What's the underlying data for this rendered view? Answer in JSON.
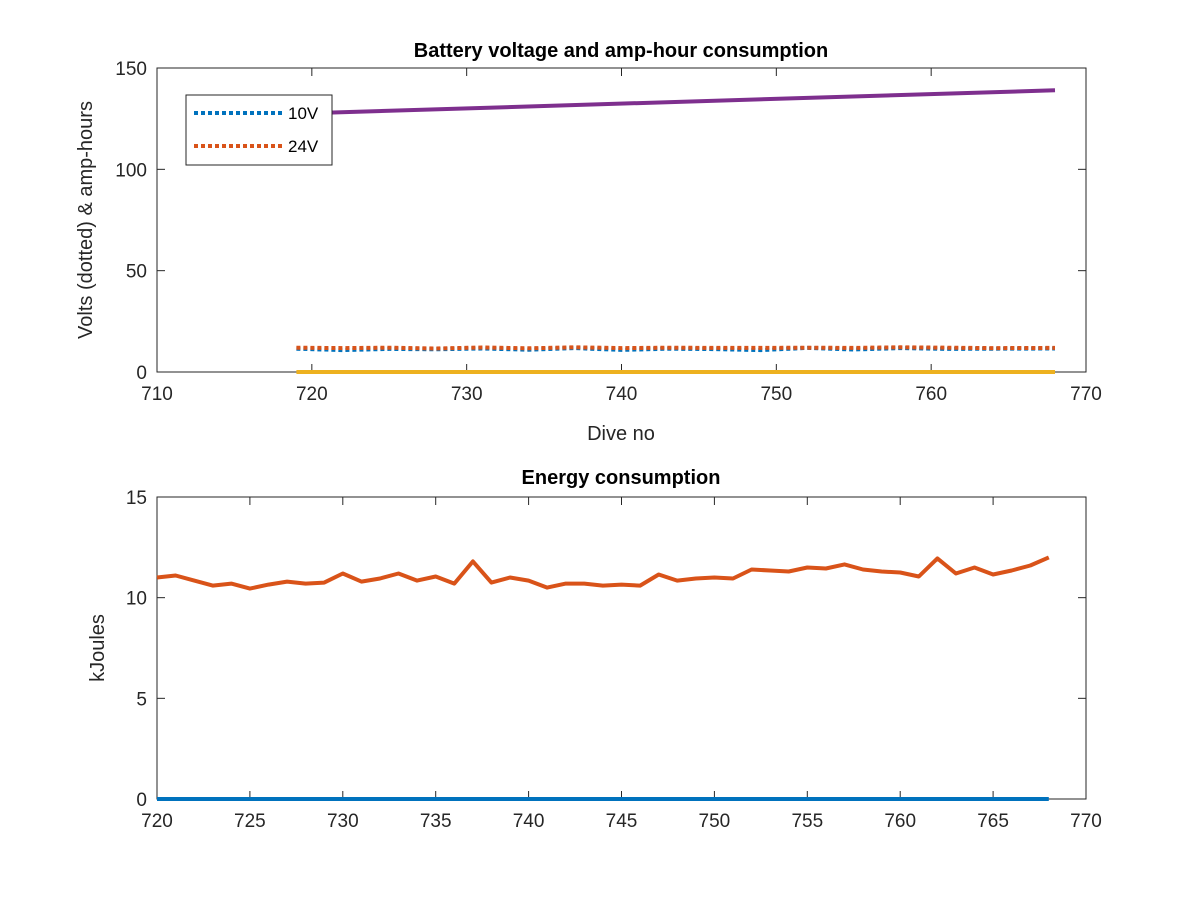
{
  "chart_data": [
    {
      "type": "line",
      "title": "Battery voltage and amp-hour consumption",
      "xlabel": "Dive no",
      "ylabel": "Volts (dotted) & amp-hours",
      "xlim": [
        710,
        770
      ],
      "ylim": [
        0,
        150
      ],
      "xticks": [
        710,
        720,
        730,
        740,
        750,
        760,
        770
      ],
      "yticks": [
        0,
        50,
        100,
        150
      ],
      "grid": false,
      "legend_location": "top-left",
      "series": [
        {
          "name": "10V",
          "color": "#0072BD",
          "style": "dotted",
          "x": [
            719,
            722,
            725,
            728,
            731,
            734,
            737,
            740,
            743,
            746,
            749,
            752,
            755,
            758,
            761,
            764,
            768
          ],
          "values": [
            11.5,
            10.8,
            11.4,
            11.2,
            11.6,
            11.0,
            11.8,
            10.9,
            11.5,
            11.3,
            10.8,
            11.9,
            11.1,
            11.8,
            11.4,
            11.5,
            11.6
          ]
        },
        {
          "name": "24V",
          "color": "#D95319",
          "style": "dotted",
          "x": [
            719,
            722,
            725,
            728,
            731,
            734,
            737,
            740,
            743,
            746,
            749,
            752,
            755,
            758,
            761,
            764,
            768
          ],
          "values": [
            12.0,
            11.8,
            12.0,
            11.6,
            12.1,
            11.7,
            12.2,
            11.8,
            12.0,
            11.9,
            11.9,
            12.0,
            11.9,
            12.2,
            12.0,
            11.8,
            11.9
          ]
        },
        {
          "color": "#EDB120",
          "style": "solid",
          "x": [
            719,
            768
          ],
          "values": [
            0,
            0
          ]
        },
        {
          "color": "#7E2F8E",
          "style": "solid",
          "x": [
            719,
            768
          ],
          "values": [
            127.5,
            139
          ]
        }
      ]
    },
    {
      "type": "line",
      "title": "Energy consumption",
      "xlabel": "",
      "ylabel": "kJoules",
      "xlim": [
        720,
        770
      ],
      "ylim": [
        0,
        15
      ],
      "xticks": [
        720,
        725,
        730,
        735,
        740,
        745,
        750,
        755,
        760,
        765,
        770
      ],
      "yticks": [
        0,
        5,
        10,
        15
      ],
      "grid": false,
      "series": [
        {
          "color": "#D95319",
          "style": "solid",
          "x": [
            720,
            721,
            722,
            723,
            724,
            725,
            726,
            727,
            728,
            729,
            730,
            731,
            732,
            733,
            734,
            735,
            736,
            737,
            738,
            739,
            740,
            741,
            742,
            743,
            744,
            745,
            746,
            747,
            748,
            749,
            750,
            751,
            752,
            753,
            754,
            755,
            756,
            757,
            758,
            759,
            760,
            761,
            762,
            763,
            764,
            765,
            766,
            767,
            768
          ],
          "values": [
            11.0,
            11.1,
            10.85,
            10.6,
            10.7,
            10.45,
            10.65,
            10.8,
            10.7,
            10.75,
            11.2,
            10.8,
            10.95,
            11.2,
            10.85,
            11.05,
            10.7,
            11.8,
            10.75,
            11.0,
            10.85,
            10.5,
            10.7,
            10.7,
            10.6,
            10.65,
            10.6,
            11.15,
            10.85,
            10.95,
            11.0,
            10.95,
            11.4,
            11.35,
            11.3,
            11.5,
            11.45,
            11.65,
            11.4,
            11.3,
            11.25,
            11.05,
            11.95,
            11.2,
            11.5,
            11.15,
            11.35,
            11.6,
            12.0
          ]
        },
        {
          "color": "#0072BD",
          "style": "solid",
          "x": [
            720,
            768
          ],
          "values": [
            0,
            0
          ]
        }
      ]
    }
  ]
}
